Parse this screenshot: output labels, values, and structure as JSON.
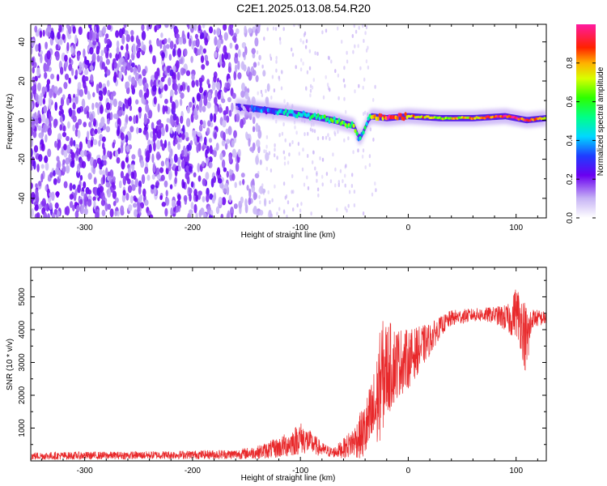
{
  "title": "C2E1.2025.013.08.54.R20",
  "colors": {
    "spectrogram_low": "#d8c8f4",
    "spectrogram_mid": "#5a00e0",
    "snr_line": "#e8282a",
    "frame": "#000000"
  },
  "chart_data": [
    {
      "type": "heatmap",
      "xlabel": "Height of straight line (km)",
      "ylabel": "Frequency (Hz)",
      "xlim": [
        -350,
        128
      ],
      "ylim": [
        -50,
        49
      ],
      "x_ticks": [
        -300,
        -200,
        -100,
        0,
        100
      ],
      "y_ticks": [
        -40,
        -20,
        0,
        20,
        40
      ],
      "colorbar": {
        "label": "Normalized spectral amplitude",
        "range": [
          0,
          1
        ],
        "ticks": [
          "0.0",
          "0.2",
          "0.4",
          "0.6",
          "0.8"
        ],
        "tick_values": [
          0,
          0.2,
          0.4,
          0.6,
          0.8
        ]
      },
      "ridge": [
        {
          "x": -160,
          "freq": 7,
          "amp": 0.15
        },
        {
          "x": -130,
          "freq": 5,
          "amp": 0.35
        },
        {
          "x": -100,
          "freq": 3,
          "amp": 0.45
        },
        {
          "x": -70,
          "freq": 0,
          "amp": 0.55
        },
        {
          "x": -50,
          "freq": -3,
          "amp": 0.6
        },
        {
          "x": -45,
          "freq": -10,
          "amp": 0.4
        },
        {
          "x": -35,
          "freq": 2,
          "amp": 0.65
        },
        {
          "x": -20,
          "freq": 1,
          "amp": 0.9
        },
        {
          "x": 0,
          "freq": 2,
          "amp": 0.85
        },
        {
          "x": 30,
          "freq": 1,
          "amp": 0.7
        },
        {
          "x": 60,
          "freq": 1,
          "amp": 0.75
        },
        {
          "x": 90,
          "freq": 2,
          "amp": 0.95
        },
        {
          "x": 110,
          "freq": 0,
          "amp": 0.85
        },
        {
          "x": 128,
          "freq": 1,
          "amp": 0.7
        }
      ],
      "noise_extent_x": [
        -350,
        -140
      ]
    },
    {
      "type": "line",
      "xlabel": "Height of straight line (km)",
      "ylabel": "SNR (10 * v/v)",
      "xlim": [
        -350,
        128
      ],
      "ylim": [
        0,
        5900
      ],
      "x_ticks": [
        -300,
        -200,
        -100,
        0,
        100
      ],
      "y_ticks": [
        1000,
        2000,
        3000,
        4000,
        5000
      ],
      "series": [
        {
          "x": [
            -350,
            -300,
            -250,
            -200,
            -160,
            -140,
            -120,
            -110,
            -100,
            -90,
            -80,
            -70,
            -60,
            -50,
            -40,
            -30,
            -25,
            -20,
            -10,
            0,
            10,
            20,
            30,
            40,
            60,
            80,
            95,
            100,
            105,
            110,
            115,
            128
          ],
          "mean": [
            150,
            160,
            170,
            190,
            200,
            260,
            400,
            520,
            700,
            550,
            350,
            250,
            380,
            600,
            900,
            1600,
            2500,
            2800,
            3000,
            3100,
            3400,
            3700,
            4100,
            4350,
            4450,
            4450,
            4300,
            4600,
            4200,
            3600,
            4350,
            4350
          ],
          "spread": [
            120,
            120,
            120,
            130,
            150,
            200,
            320,
            400,
            500,
            350,
            220,
            150,
            300,
            500,
            900,
            1400,
            1800,
            1500,
            1100,
            900,
            700,
            500,
            300,
            250,
            200,
            250,
            500,
            800,
            900,
            1200,
            300,
            200
          ]
        }
      ]
    }
  ]
}
